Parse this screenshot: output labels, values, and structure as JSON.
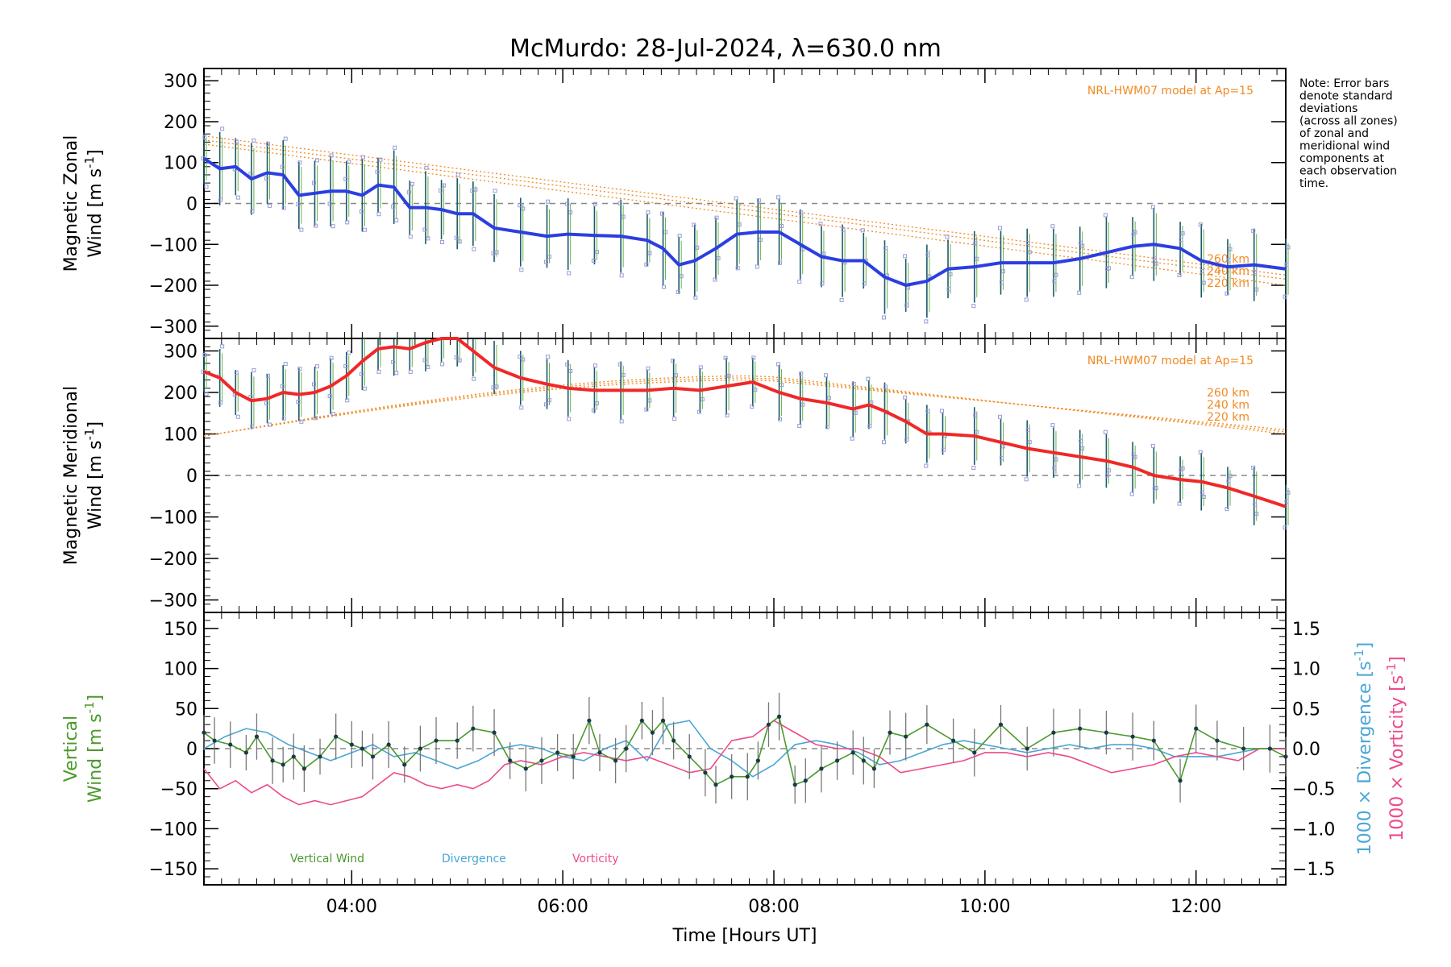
{
  "title": "McMurdo: 28-Jul-2024, λ=630.0 nm",
  "note_lines": [
    "Note: Error bars",
    "denote standard",
    "deviations",
    "(across all zones)",
    "of zonal and",
    "meridional wind",
    "components at",
    "each observation",
    "time."
  ],
  "colors": {
    "zonal": "#2b3fe0",
    "meridional": "#f02828",
    "vertical": "#4a9a2a",
    "divergence": "#4aa6d6",
    "vorticity": "#ec4a8c",
    "model": "#f08a24",
    "errorbar": "#1a5a6a",
    "scatter": "#9a9ad8",
    "zero": "#888888"
  },
  "chart_data": [
    {
      "type": "line",
      "ylabel_line1": "Magnetic Zonal",
      "ylabel_line2": "Wind [m s",
      "ylabel_sup": "-1",
      "ylabel_close": "]",
      "ylim": [
        -330,
        330
      ],
      "yticks": [
        -300,
        -200,
        -100,
        0,
        100,
        200,
        300
      ],
      "xlim": [
        2.6,
        12.85
      ],
      "model_label": "NRL-HWM07 model at Ap=15",
      "model_alt_labels": [
        "260 km",
        "240 km",
        "220 km"
      ],
      "series": [
        {
          "x": [
            2.6,
            2.75,
            2.9,
            3.05,
            3.2,
            3.35,
            3.5,
            3.65,
            3.8,
            3.95,
            4.1,
            4.25,
            4.4,
            4.55,
            4.7,
            4.85,
            5.0,
            5.15,
            5.35,
            5.6,
            5.85,
            6.05,
            6.3,
            6.55,
            6.8,
            6.95,
            7.1,
            7.25,
            7.45,
            7.65,
            7.85,
            8.05,
            8.25,
            8.45,
            8.65,
            8.85,
            9.05,
            9.25,
            9.45,
            9.65,
            9.9,
            10.15,
            10.4,
            10.65,
            10.9,
            11.15,
            11.4,
            11.6,
            11.85,
            12.05,
            12.3,
            12.55,
            12.85
          ],
          "y": [
            110,
            85,
            90,
            60,
            75,
            70,
            20,
            25,
            30,
            30,
            20,
            45,
            40,
            -10,
            -10,
            -15,
            -25,
            -25,
            -60,
            -70,
            -80,
            -75,
            -78,
            -80,
            -90,
            -110,
            -150,
            -140,
            -110,
            -75,
            -70,
            -70,
            -100,
            -130,
            -140,
            -140,
            -180,
            -200,
            -190,
            -160,
            -155,
            -145,
            -145,
            -145,
            -135,
            -120,
            -105,
            -100,
            -110,
            -140,
            -155,
            -150,
            -160
          ]
        }
      ],
      "models": [
        {
          "name": "260 km",
          "x": [
            2.6,
            12.85
          ],
          "y0": 165,
          "y1": -175
        },
        {
          "name": "240 km",
          "x": [
            2.6,
            12.85
          ],
          "y0": 155,
          "y1": -185
        },
        {
          "name": "220 km",
          "x": [
            2.6,
            12.85
          ],
          "y0": 145,
          "y1": -200
        }
      ]
    },
    {
      "type": "line",
      "ylabel_line1": "Magnetic Meridional",
      "ylabel_line2": "Wind [m s",
      "ylabel_sup": "-1",
      "ylabel_close": "]",
      "ylim": [
        -330,
        330
      ],
      "yticks": [
        -300,
        -200,
        -100,
        0,
        100,
        200,
        300
      ],
      "xlim": [
        2.6,
        12.85
      ],
      "model_label": "NRL-HWM07 model at Ap=15",
      "model_alt_labels": [
        "260 km",
        "240 km",
        "220 km"
      ],
      "series": [
        {
          "x": [
            2.6,
            2.75,
            2.9,
            3.05,
            3.2,
            3.35,
            3.5,
            3.65,
            3.8,
            3.95,
            4.1,
            4.25,
            4.4,
            4.55,
            4.7,
            4.85,
            5.0,
            5.15,
            5.35,
            5.6,
            5.85,
            6.05,
            6.3,
            6.55,
            6.8,
            7.05,
            7.3,
            7.55,
            7.8,
            8.05,
            8.25,
            8.5,
            8.75,
            8.9,
            9.05,
            9.25,
            9.45,
            9.6,
            9.9,
            10.15,
            10.4,
            10.65,
            10.9,
            11.15,
            11.4,
            11.6,
            11.85,
            12.05,
            12.3,
            12.55,
            12.85
          ],
          "y": [
            250,
            235,
            200,
            180,
            185,
            200,
            195,
            200,
            215,
            240,
            275,
            305,
            310,
            305,
            320,
            330,
            330,
            300,
            260,
            235,
            220,
            210,
            205,
            205,
            205,
            210,
            205,
            215,
            225,
            200,
            185,
            175,
            160,
            170,
            155,
            130,
            100,
            100,
            95,
            80,
            65,
            55,
            45,
            35,
            20,
            0,
            -10,
            -15,
            -30,
            -50,
            -75
          ]
        }
      ],
      "models": [
        {
          "name": "260 km",
          "x": [
            2.6,
            12.85
          ],
          "y0": 95,
          "y1": 110
        },
        {
          "name": "240 km",
          "x": [
            2.6,
            12.85
          ],
          "y0": 95,
          "y1": 105
        },
        {
          "name": "220 km",
          "x": [
            2.6,
            12.85
          ],
          "y0": 95,
          "y1": 100
        }
      ]
    },
    {
      "type": "line",
      "ylabel_line1": "Vertical",
      "ylabel_line2": "Wind [m s",
      "ylabel_sup": "-1",
      "ylabel_close": "]",
      "ylabel_right_div": "1000 × Divergence [s",
      "ylabel_right_vort": "1000 × Vorticity [s",
      "ylim": [
        -170,
        170
      ],
      "yticks": [
        -150,
        -100,
        -50,
        0,
        50,
        100,
        150
      ],
      "y2lim": [
        -1.7,
        1.7
      ],
      "y2ticks": [
        -1.5,
        -1.0,
        -0.5,
        0.0,
        0.5,
        1.0,
        1.5
      ],
      "y2ticklabels": [
        "−1.5",
        "−1.0",
        "−0.5",
        "0.0",
        "0.5",
        "1.0",
        "1.5"
      ],
      "xlim": [
        2.6,
        12.85
      ],
      "xticks": [
        4,
        6,
        8,
        10,
        12
      ],
      "xticklabels": [
        "04:00",
        "06:00",
        "08:00",
        "10:00",
        "12:00"
      ],
      "xlabel": "Time [Hours UT]",
      "legend": [
        "Vertical Wind",
        "Divergence",
        "Vorticity"
      ],
      "series": [
        {
          "name": "Vertical Wind",
          "x": [
            2.6,
            2.7,
            2.85,
            3.0,
            3.1,
            3.25,
            3.35,
            3.45,
            3.55,
            3.7,
            3.85,
            4.0,
            4.1,
            4.2,
            4.35,
            4.5,
            4.65,
            4.8,
            5.0,
            5.15,
            5.35,
            5.5,
            5.65,
            5.8,
            5.95,
            6.1,
            6.25,
            6.35,
            6.5,
            6.6,
            6.75,
            6.85,
            6.95,
            7.05,
            7.2,
            7.35,
            7.45,
            7.6,
            7.75,
            7.85,
            7.95,
            8.05,
            8.2,
            8.3,
            8.45,
            8.6,
            8.75,
            8.85,
            8.95,
            9.1,
            9.25,
            9.45,
            9.7,
            9.9,
            10.15,
            10.4,
            10.65,
            10.9,
            11.15,
            11.4,
            11.6,
            11.85,
            12.0,
            12.2,
            12.45,
            12.7,
            12.85
          ],
          "y": [
            20,
            10,
            5,
            -5,
            15,
            -15,
            -20,
            -10,
            -25,
            -10,
            15,
            5,
            0,
            -10,
            5,
            -20,
            0,
            10,
            10,
            25,
            20,
            -15,
            -25,
            -15,
            -5,
            -10,
            35,
            -5,
            -15,
            0,
            35,
            20,
            35,
            10,
            -10,
            -30,
            -45,
            -35,
            -35,
            -15,
            30,
            40,
            -45,
            -40,
            -25,
            -15,
            -5,
            -15,
            -25,
            20,
            15,
            30,
            10,
            -5,
            30,
            0,
            20,
            25,
            20,
            15,
            10,
            -40,
            25,
            10,
            0,
            0,
            -10
          ]
        },
        {
          "name": "Divergence",
          "x": [
            2.6,
            2.8,
            3.0,
            3.2,
            3.4,
            3.6,
            3.8,
            4.0,
            4.2,
            4.4,
            4.6,
            4.8,
            5.0,
            5.2,
            5.4,
            5.6,
            5.8,
            6.0,
            6.2,
            6.4,
            6.6,
            6.8,
            7.0,
            7.2,
            7.4,
            7.6,
            7.8,
            8.0,
            8.2,
            8.4,
            8.6,
            8.8,
            9.0,
            9.2,
            9.4,
            9.6,
            9.8,
            10.0,
            10.2,
            10.4,
            10.6,
            10.8,
            11.0,
            11.2,
            11.4,
            11.6,
            11.8,
            12.0,
            12.2,
            12.4,
            12.6,
            12.85
          ],
          "y": [
            0.0,
            0.15,
            0.25,
            0.2,
            0.05,
            -0.05,
            -0.15,
            -0.05,
            0.05,
            -0.1,
            -0.05,
            -0.15,
            -0.25,
            -0.15,
            0.0,
            0.05,
            0.0,
            -0.1,
            -0.15,
            0.0,
            0.1,
            -0.15,
            0.3,
            0.35,
            0.0,
            -0.15,
            -0.35,
            -0.2,
            0.05,
            0.1,
            0.05,
            -0.05,
            -0.2,
            -0.15,
            -0.05,
            0.05,
            0.1,
            0.05,
            0.0,
            -0.05,
            0.0,
            0.05,
            0.0,
            0.05,
            0.05,
            0.0,
            -0.1,
            -0.1,
            -0.1,
            -0.05,
            0.0,
            0.0
          ]
        },
        {
          "name": "Vorticity",
          "x": [
            2.6,
            2.75,
            2.9,
            3.05,
            3.2,
            3.35,
            3.5,
            3.65,
            3.8,
            3.95,
            4.1,
            4.25,
            4.4,
            4.55,
            4.7,
            4.85,
            5.0,
            5.15,
            5.3,
            5.45,
            5.6,
            5.8,
            6.0,
            6.2,
            6.4,
            6.6,
            6.8,
            7.0,
            7.2,
            7.4,
            7.6,
            7.8,
            8.0,
            8.2,
            8.4,
            8.6,
            8.8,
            9.0,
            9.2,
            9.4,
            9.6,
            9.8,
            10.0,
            10.2,
            10.4,
            10.6,
            10.8,
            11.0,
            11.2,
            11.4,
            11.6,
            11.8,
            12.0,
            12.2,
            12.4,
            12.6,
            12.85
          ],
          "y": [
            -0.25,
            -0.5,
            -0.4,
            -0.55,
            -0.45,
            -0.6,
            -0.7,
            -0.65,
            -0.7,
            -0.65,
            -0.6,
            -0.45,
            -0.3,
            -0.35,
            -0.45,
            -0.5,
            -0.45,
            -0.5,
            -0.4,
            -0.2,
            -0.15,
            -0.2,
            -0.1,
            -0.05,
            -0.1,
            -0.15,
            -0.1,
            -0.2,
            -0.3,
            -0.25,
            0.1,
            0.15,
            0.35,
            0.2,
            0.05,
            0.0,
            0.0,
            -0.1,
            -0.3,
            -0.25,
            -0.2,
            -0.15,
            -0.05,
            -0.05,
            -0.1,
            -0.05,
            -0.1,
            -0.2,
            -0.3,
            -0.25,
            -0.2,
            -0.1,
            -0.05,
            -0.1,
            -0.15,
            0.0,
            0.0
          ]
        }
      ]
    }
  ]
}
